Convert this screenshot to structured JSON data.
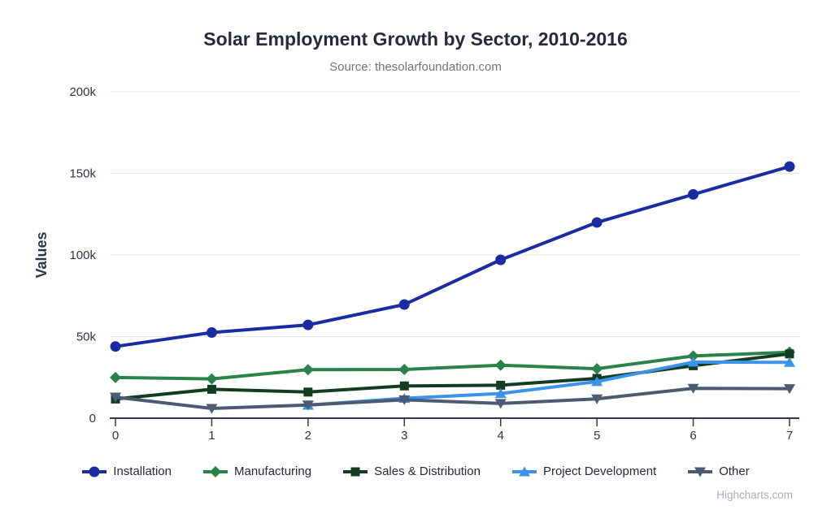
{
  "header": {
    "title": "Solar Employment Growth by Sector, 2010-2016",
    "subtitle": "Source: thesolarfoundation.com"
  },
  "chart_data": {
    "type": "line",
    "x": [
      0,
      1,
      2,
      3,
      4,
      5,
      6,
      7
    ],
    "xtick_labels": [
      "0",
      "1",
      "2",
      "3",
      "4",
      "5",
      "6",
      "7"
    ],
    "ylabel": "Values",
    "xlabel": "",
    "ylim": [
      0,
      200000
    ],
    "yticks": [
      0,
      50000,
      100000,
      150000,
      200000
    ],
    "ytick_labels": [
      "0",
      "50k",
      "100k",
      "150k",
      "200k"
    ],
    "grid": true,
    "legend_position": "bottom",
    "series": [
      {
        "name": "Installation",
        "color": "#1b2ca3",
        "marker": "circle",
        "values": [
          43934,
          52503,
          57177,
          69658,
          97031,
          119931,
          137133,
          154175
        ]
      },
      {
        "name": "Manufacturing",
        "color": "#28824a",
        "marker": "diamond",
        "values": [
          24916,
          24064,
          29742,
          29851,
          32490,
          30282,
          38121,
          40434
        ]
      },
      {
        "name": "Sales & Distribution",
        "color": "#123d22",
        "marker": "square",
        "values": [
          11744,
          17722,
          16005,
          19771,
          20185,
          24377,
          32147,
          39387
        ]
      },
      {
        "name": "Project Development",
        "color": "#3b93ea",
        "marker": "triangle",
        "values": [
          null,
          null,
          7988,
          12169,
          15112,
          22452,
          34400,
          34227
        ]
      },
      {
        "name": "Other",
        "color": "#4c5a73",
        "marker": "triangle-down",
        "values": [
          12908,
          5948,
          8105,
          11248,
          8989,
          11816,
          18274,
          18111
        ]
      }
    ],
    "colors": {
      "gridline": "#e6e6e6",
      "axis_line": "#2f3a50",
      "axis_text": "#2b3547"
    }
  },
  "credits": {
    "label": "Highcharts.com"
  }
}
